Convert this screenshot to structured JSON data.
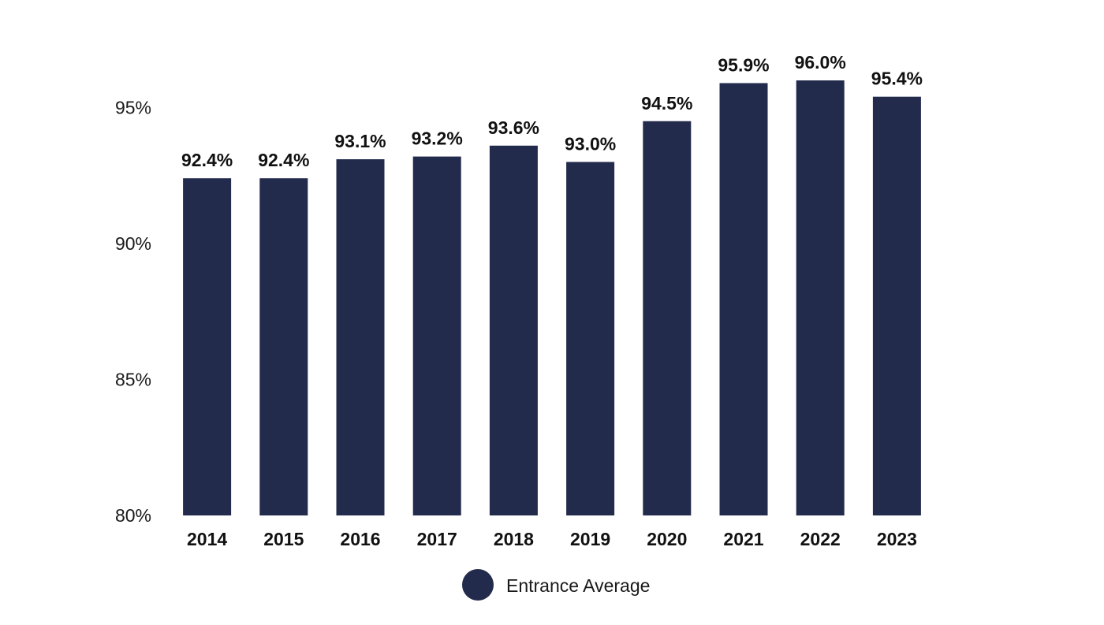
{
  "chart_data": {
    "type": "bar",
    "categories": [
      "2014",
      "2015",
      "2016",
      "2017",
      "2018",
      "2019",
      "2020",
      "2021",
      "2022",
      "2023"
    ],
    "series": [
      {
        "name": "Entrance Average",
        "color": "#232b4d",
        "values": [
          92.4,
          92.4,
          93.1,
          93.2,
          93.6,
          93.0,
          94.5,
          95.9,
          96.0,
          95.4
        ],
        "data_labels": [
          "92.4%",
          "92.4%",
          "93.1%",
          "93.2%",
          "93.6%",
          "93.0%",
          "94.5%",
          "95.9%",
          "96.0%",
          "95.4%"
        ]
      }
    ],
    "ylim": [
      80,
      98
    ],
    "yticks": [
      80,
      85,
      90,
      95
    ],
    "ytick_labels": [
      "80%",
      "85%",
      "90%",
      "95%"
    ],
    "title": "",
    "xlabel": "",
    "ylabel": "",
    "grid": false,
    "legend": {
      "position": "bottom-center",
      "marker": "circle",
      "label": "Entrance Average"
    }
  }
}
